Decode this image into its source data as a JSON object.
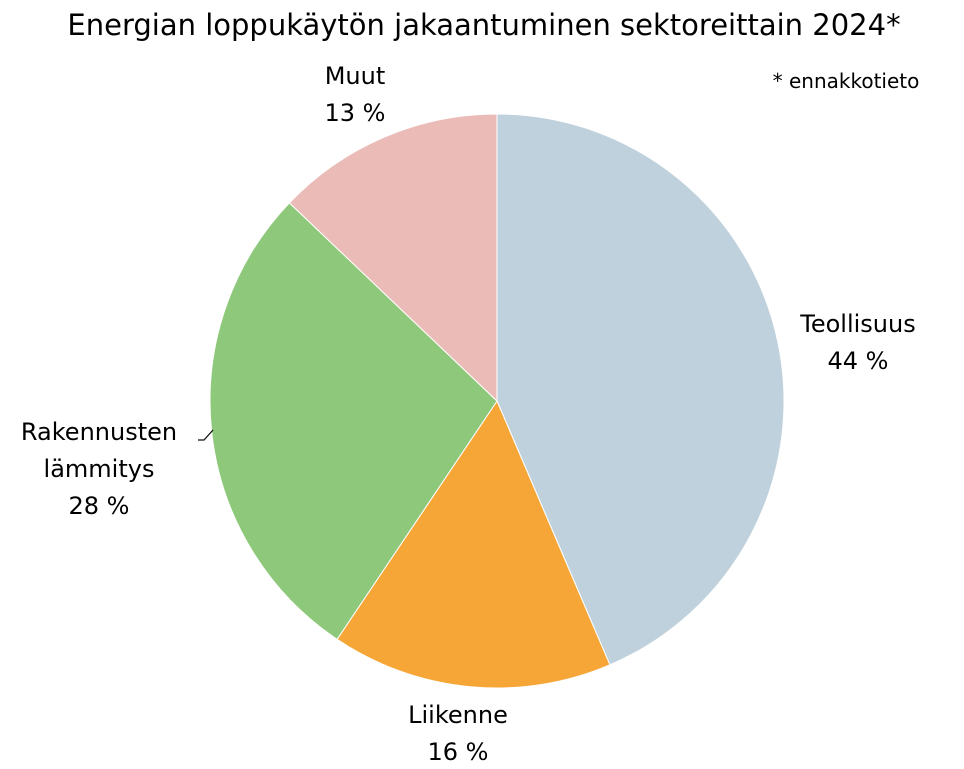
{
  "chart_data": {
    "type": "pie",
    "title": "Energian loppukäytön jakaantuminen sektoreittain 2024*",
    "note": "* ennakkotieto",
    "slices": [
      {
        "label": "Teollisuus",
        "lines": [
          "Teollisuus"
        ],
        "value": 44,
        "value_label": "44 %",
        "color": "#bed1dc"
      },
      {
        "label": "Liikenne",
        "lines": [
          "Liikenne"
        ],
        "value": 16,
        "value_label": "16 %",
        "color": "#f6a637"
      },
      {
        "label": "Rakennusten lämmitys",
        "lines": [
          "Rakennusten",
          "lämmitys"
        ],
        "value": 28,
        "value_label": "28 %",
        "color": "#8ec87a"
      },
      {
        "label": "Muut",
        "lines": [
          "Muut"
        ],
        "value": 13,
        "value_label": "13 %",
        "color": "#eabbb7"
      }
    ],
    "start": "12 o'clock",
    "direction": "clockwise"
  }
}
